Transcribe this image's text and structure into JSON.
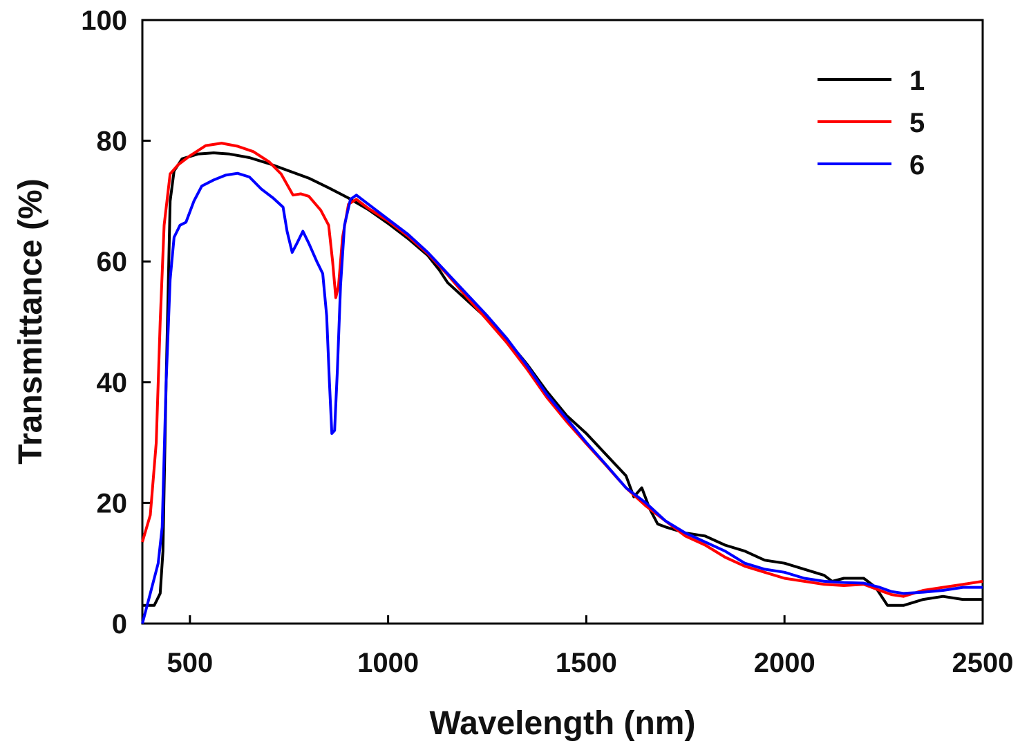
{
  "chart_data": {
    "type": "line",
    "title": "",
    "xlabel": "Wavelength (nm)",
    "ylabel": "Transmittance (%)",
    "xlim": [
      380,
      2500
    ],
    "ylim": [
      0,
      100
    ],
    "xticks": [
      500,
      1000,
      1500,
      2000,
      2500
    ],
    "yticks": [
      0,
      20,
      40,
      60,
      80,
      100
    ],
    "grid": false,
    "legend": "top-right",
    "series": [
      {
        "name": "1",
        "color": "#000000",
        "points": [
          [
            380,
            3
          ],
          [
            410,
            3
          ],
          [
            425,
            5
          ],
          [
            432,
            12
          ],
          [
            440,
            40
          ],
          [
            450,
            70
          ],
          [
            460,
            75
          ],
          [
            480,
            77
          ],
          [
            520,
            77.8
          ],
          [
            560,
            78
          ],
          [
            600,
            77.8
          ],
          [
            650,
            77.2
          ],
          [
            700,
            76.2
          ],
          [
            750,
            75
          ],
          [
            800,
            73.8
          ],
          [
            850,
            72.2
          ],
          [
            900,
            70.5
          ],
          [
            950,
            68.6
          ],
          [
            1000,
            66.3
          ],
          [
            1050,
            63.8
          ],
          [
            1100,
            61
          ],
          [
            1130,
            58.5
          ],
          [
            1150,
            56.5
          ],
          [
            1200,
            53.5
          ],
          [
            1250,
            50.5
          ],
          [
            1300,
            47
          ],
          [
            1350,
            43
          ],
          [
            1400,
            38.5
          ],
          [
            1450,
            34.5
          ],
          [
            1500,
            31.5
          ],
          [
            1550,
            28
          ],
          [
            1600,
            24.5
          ],
          [
            1620,
            21
          ],
          [
            1640,
            22.5
          ],
          [
            1660,
            19
          ],
          [
            1680,
            16.5
          ],
          [
            1700,
            16
          ],
          [
            1750,
            15
          ],
          [
            1800,
            14.5
          ],
          [
            1850,
            13
          ],
          [
            1900,
            12
          ],
          [
            1950,
            10.5
          ],
          [
            2000,
            10
          ],
          [
            2050,
            9
          ],
          [
            2100,
            8
          ],
          [
            2120,
            7
          ],
          [
            2150,
            7.5
          ],
          [
            2200,
            7.5
          ],
          [
            2230,
            6
          ],
          [
            2260,
            3
          ],
          [
            2300,
            3
          ],
          [
            2350,
            4
          ],
          [
            2400,
            4.5
          ],
          [
            2450,
            4
          ],
          [
            2500,
            4
          ]
        ]
      },
      {
        "name": "5",
        "color": "#ff0000",
        "points": [
          [
            380,
            13.5
          ],
          [
            400,
            18
          ],
          [
            415,
            30
          ],
          [
            425,
            50
          ],
          [
            435,
            66
          ],
          [
            450,
            74.5
          ],
          [
            470,
            76
          ],
          [
            500,
            77.5
          ],
          [
            540,
            79.2
          ],
          [
            580,
            79.6
          ],
          [
            620,
            79.1
          ],
          [
            660,
            78.2
          ],
          [
            700,
            76.5
          ],
          [
            730,
            74.5
          ],
          [
            760,
            71
          ],
          [
            780,
            71.2
          ],
          [
            800,
            70.8
          ],
          [
            830,
            68.5
          ],
          [
            850,
            66
          ],
          [
            860,
            60
          ],
          [
            868,
            54
          ],
          [
            875,
            56
          ],
          [
            885,
            64
          ],
          [
            900,
            69.5
          ],
          [
            920,
            70.3
          ],
          [
            950,
            68.8
          ],
          [
            1000,
            66.7
          ],
          [
            1050,
            64.2
          ],
          [
            1100,
            61.3
          ],
          [
            1150,
            57.8
          ],
          [
            1200,
            54
          ],
          [
            1250,
            50.3
          ],
          [
            1300,
            46.5
          ],
          [
            1350,
            42.2
          ],
          [
            1400,
            37.5
          ],
          [
            1450,
            33.5
          ],
          [
            1500,
            29.8
          ],
          [
            1550,
            26.2
          ],
          [
            1600,
            22.5
          ],
          [
            1650,
            19.5
          ],
          [
            1700,
            17
          ],
          [
            1750,
            14.5
          ],
          [
            1800,
            13
          ],
          [
            1850,
            11
          ],
          [
            1900,
            9.5
          ],
          [
            1950,
            8.5
          ],
          [
            2000,
            7.5
          ],
          [
            2050,
            7
          ],
          [
            2100,
            6.5
          ],
          [
            2150,
            6.3
          ],
          [
            2200,
            6.5
          ],
          [
            2240,
            5.5
          ],
          [
            2270,
            4.8
          ],
          [
            2300,
            4.5
          ],
          [
            2350,
            5.5
          ],
          [
            2400,
            6
          ],
          [
            2450,
            6.5
          ],
          [
            2500,
            7
          ]
        ]
      },
      {
        "name": "6",
        "color": "#0000ff",
        "points": [
          [
            380,
            0
          ],
          [
            400,
            5
          ],
          [
            420,
            10
          ],
          [
            430,
            16
          ],
          [
            440,
            40
          ],
          [
            450,
            57
          ],
          [
            460,
            64
          ],
          [
            475,
            66
          ],
          [
            490,
            66.5
          ],
          [
            510,
            70
          ],
          [
            530,
            72.5
          ],
          [
            560,
            73.5
          ],
          [
            590,
            74.3
          ],
          [
            620,
            74.6
          ],
          [
            650,
            74
          ],
          [
            680,
            72
          ],
          [
            710,
            70.5
          ],
          [
            735,
            69
          ],
          [
            745,
            65
          ],
          [
            758,
            61.5
          ],
          [
            770,
            63
          ],
          [
            785,
            65
          ],
          [
            800,
            63
          ],
          [
            820,
            60
          ],
          [
            835,
            58
          ],
          [
            845,
            51
          ],
          [
            852,
            40
          ],
          [
            858,
            31.5
          ],
          [
            865,
            32
          ],
          [
            872,
            42
          ],
          [
            880,
            56
          ],
          [
            890,
            66
          ],
          [
            905,
            70.3
          ],
          [
            920,
            71
          ],
          [
            950,
            69.5
          ],
          [
            1000,
            67
          ],
          [
            1050,
            64.5
          ],
          [
            1100,
            61.5
          ],
          [
            1150,
            58
          ],
          [
            1200,
            54.5
          ],
          [
            1250,
            51
          ],
          [
            1300,
            47.2
          ],
          [
            1350,
            42.8
          ],
          [
            1400,
            38
          ],
          [
            1450,
            34
          ],
          [
            1500,
            30
          ],
          [
            1550,
            26.3
          ],
          [
            1600,
            22.5
          ],
          [
            1620,
            21.5
          ],
          [
            1650,
            20
          ],
          [
            1700,
            17
          ],
          [
            1750,
            15
          ],
          [
            1800,
            13.5
          ],
          [
            1850,
            12
          ],
          [
            1900,
            10
          ],
          [
            1950,
            9
          ],
          [
            2000,
            8.5
          ],
          [
            2050,
            7.5
          ],
          [
            2100,
            7
          ],
          [
            2150,
            6.8
          ],
          [
            2200,
            6.7
          ],
          [
            2240,
            6
          ],
          [
            2270,
            5.3
          ],
          [
            2300,
            5
          ],
          [
            2350,
            5.2
          ],
          [
            2400,
            5.5
          ],
          [
            2450,
            6
          ],
          [
            2500,
            6
          ]
        ]
      }
    ]
  }
}
